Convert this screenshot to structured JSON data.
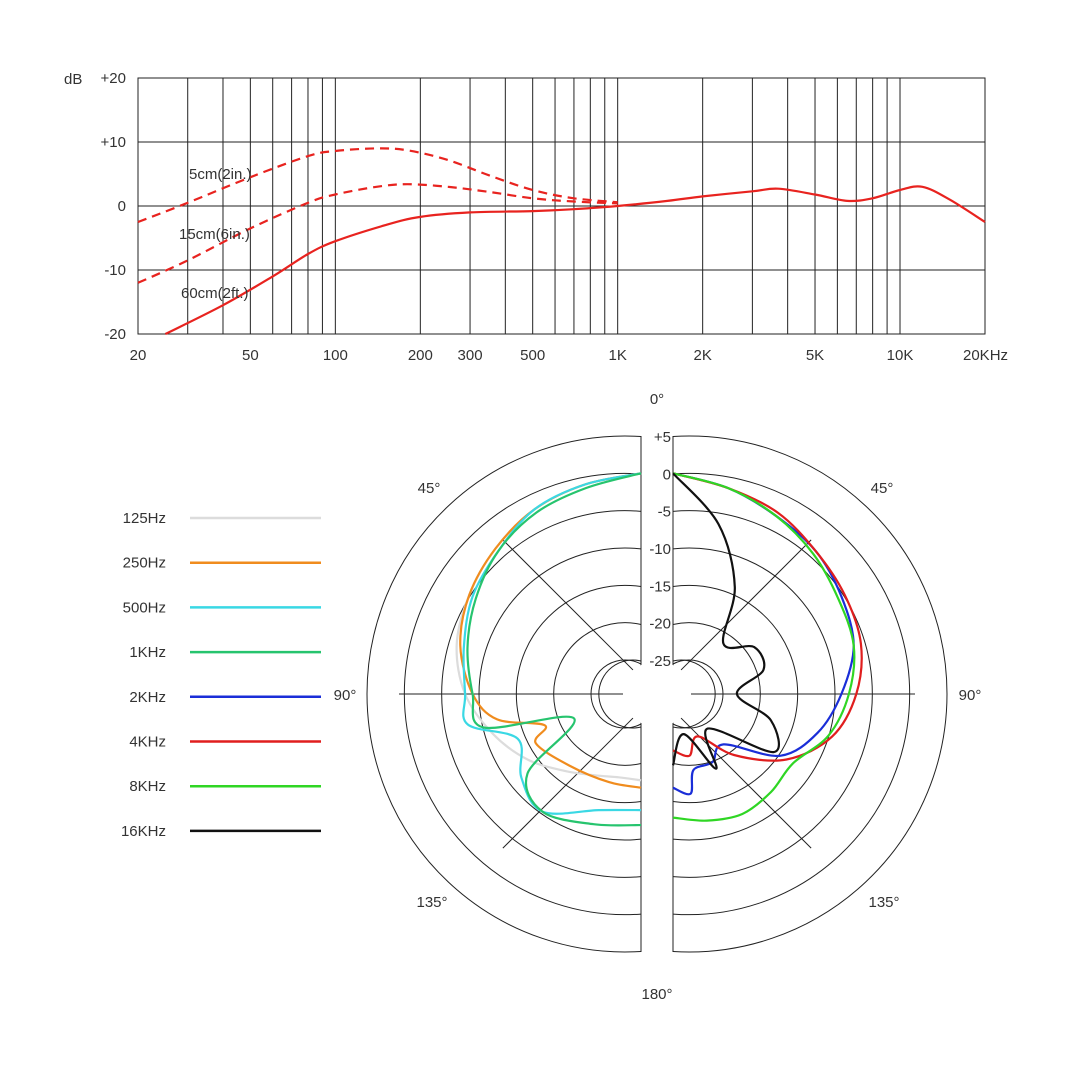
{
  "chart_data": [
    {
      "type": "line",
      "title": "",
      "xscale": "log",
      "xlim": [
        20,
        20000
      ],
      "ylim": [
        -20,
        20
      ],
      "ylabel": "dB",
      "y_ticks": [
        {
          "value": 20,
          "label": "+20"
        },
        {
          "value": 10,
          "label": "+10"
        },
        {
          "value": 0,
          "label": "0"
        },
        {
          "value": -10,
          "label": "-10"
        },
        {
          "value": -20,
          "label": "-20"
        }
      ],
      "x_ticks": [
        {
          "value": 20,
          "label": "20"
        },
        {
          "value": 50,
          "label": "50"
        },
        {
          "value": 100,
          "label": "100"
        },
        {
          "value": 200,
          "label": "200"
        },
        {
          "value": 300,
          "label": "300"
        },
        {
          "value": 500,
          "label": "500"
        },
        {
          "value": 1000,
          "label": "1K"
        },
        {
          "value": 2000,
          "label": "2K"
        },
        {
          "value": 5000,
          "label": "5K"
        },
        {
          "value": 10000,
          "label": "10K"
        },
        {
          "value": 20000,
          "label": "20KHz"
        }
      ],
      "grid": true,
      "color": "#e8231f",
      "series": [
        {
          "name": "5cm(2in.)",
          "style": "dashed",
          "x": [
            20,
            30,
            50,
            80,
            100,
            140,
            180,
            250,
            350,
            500,
            700,
            1000
          ],
          "y": [
            -2.5,
            0.5,
            4.5,
            7.8,
            8.6,
            9.0,
            8.7,
            7.2,
            4.8,
            2.5,
            1.2,
            0.6
          ]
        },
        {
          "name": "15cm(6in.)",
          "style": "dashed",
          "x": [
            20,
            30,
            50,
            80,
            100,
            140,
            180,
            250,
            350,
            500,
            700,
            1000
          ],
          "y": [
            -12,
            -8.5,
            -3.5,
            0.5,
            1.8,
            3.0,
            3.4,
            3.0,
            2.2,
            1.2,
            0.7,
            0.4
          ]
        },
        {
          "name": "60cm(2ft.)",
          "style": "solid",
          "x": [
            25,
            40,
            60,
            80,
            100,
            150,
            200,
            300,
            500,
            700,
            1000,
            1500,
            2000,
            3000,
            3700,
            5000,
            6500,
            8000,
            10000,
            12000,
            15000,
            20000
          ],
          "y": [
            -20,
            -15.5,
            -11,
            -7.5,
            -5.5,
            -3,
            -1.7,
            -1,
            -0.8,
            -0.5,
            0,
            0.8,
            1.5,
            2.3,
            2.7,
            1.8,
            0.8,
            1.2,
            2.5,
            3,
            1,
            -2.5
          ]
        }
      ]
    },
    {
      "type": "polar",
      "title": "",
      "rlim": [
        -25,
        5
      ],
      "r_ticks": [
        "+5",
        "0",
        "-5",
        "-10",
        "-15",
        "-20",
        "-25"
      ],
      "angle_labels": [
        {
          "value": 0,
          "label": "0°"
        },
        {
          "value": 45,
          "label": "45°"
        },
        {
          "value": 90,
          "label": "90°"
        },
        {
          "value": 135,
          "label": "135°"
        },
        {
          "value": 180,
          "label": "180°"
        }
      ],
      "legend_position": "left",
      "series": [
        {
          "name": "125Hz",
          "color": "#dcdcdc",
          "side": "left",
          "angles": [
            0,
            15,
            30,
            45,
            60,
            75,
            90,
            105,
            120,
            135,
            150,
            165,
            180
          ],
          "values": [
            0,
            -0.5,
            -1,
            -2,
            -3,
            -4,
            -6,
            -9,
            -12,
            -15,
            -17,
            -18,
            -18
          ]
        },
        {
          "name": "250Hz",
          "color": "#f08c1e",
          "side": "left",
          "angles": [
            0,
            15,
            30,
            45,
            60,
            75,
            90,
            100,
            108,
            115,
            135,
            160,
            180
          ],
          "values": [
            0,
            -0.5,
            -1,
            -2,
            -3,
            -4.5,
            -7,
            -10,
            -16,
            -14,
            -16,
            -17,
            -17
          ]
        },
        {
          "name": "500Hz",
          "color": "#3ad8e4",
          "side": "left",
          "angles": [
            0,
            15,
            30,
            45,
            60,
            75,
            90,
            100,
            110,
            125,
            140,
            160,
            180
          ],
          "values": [
            0,
            -0.5,
            -1,
            -2.5,
            -3.5,
            -5,
            -6,
            -6,
            -12,
            -10,
            -9,
            -13,
            -14
          ]
        },
        {
          "name": "1KHz",
          "color": "#26c46e",
          "side": "left",
          "angles": [
            0,
            15,
            30,
            45,
            60,
            75,
            90,
            102,
            110,
            125,
            140,
            160,
            180
          ],
          "values": [
            0,
            -1,
            -1.5,
            -2.5,
            -4,
            -5.5,
            -7,
            -8,
            -20,
            -11,
            -9,
            -11,
            -12
          ]
        },
        {
          "name": "2KHz",
          "color": "#1a2ed8",
          "side": "right",
          "angles": [
            0,
            15,
            30,
            45,
            60,
            75,
            90,
            105,
            120,
            135,
            150,
            165,
            170,
            180
          ],
          "values": [
            0,
            -1,
            -2,
            -2.5,
            -3.5,
            -4.5,
            -7,
            -9.5,
            -13,
            -20,
            -19,
            -19,
            -16,
            -17
          ]
        },
        {
          "name": "4KHz",
          "color": "#e01e1e",
          "side": "right",
          "angles": [
            0,
            15,
            30,
            45,
            60,
            75,
            90,
            105,
            120,
            135,
            150,
            165,
            180
          ],
          "values": [
            0,
            -1,
            -1.5,
            -2.5,
            -3,
            -3.5,
            -5,
            -7.5,
            -12,
            -18,
            -23,
            -21,
            -22
          ]
        },
        {
          "name": "8KHz",
          "color": "#2fd624",
          "side": "right",
          "angles": [
            0,
            15,
            30,
            45,
            60,
            75,
            90,
            105,
            120,
            135,
            150,
            165,
            180
          ],
          "values": [
            0,
            -1,
            -2,
            -3,
            -4,
            -4.5,
            -6,
            -8,
            -11,
            -11,
            -11,
            -12,
            -13
          ]
        },
        {
          "name": "16KHz",
          "color": "#111111",
          "side": "right",
          "angles": [
            0,
            15,
            30,
            45,
            60,
            75,
            90,
            105,
            120,
            135,
            150,
            165,
            180
          ],
          "values": [
            0,
            -6,
            -13,
            -20,
            -17,
            -17,
            -21,
            -16,
            -14,
            -23,
            -18,
            -24,
            -20
          ]
        }
      ]
    }
  ]
}
